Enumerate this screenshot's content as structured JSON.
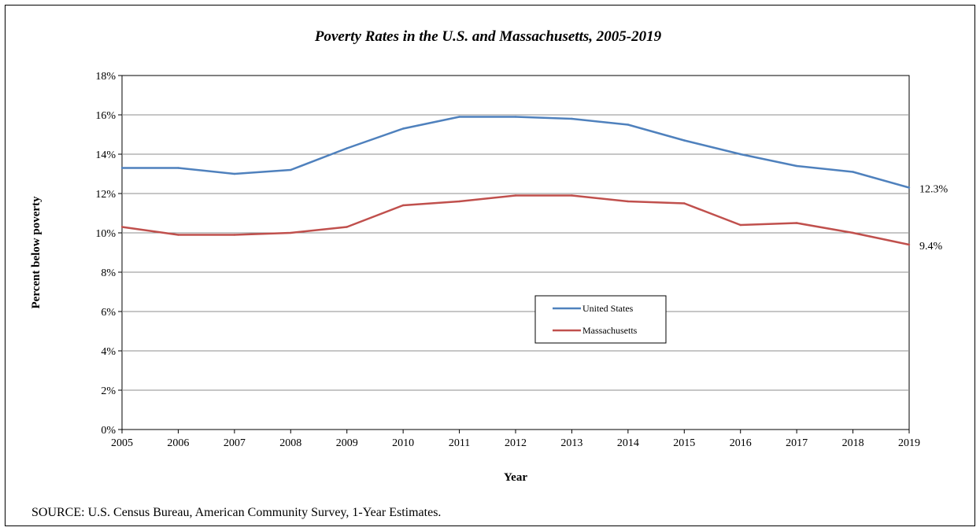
{
  "chart_data": {
    "type": "line",
    "title": "Poverty Rates in the U.S. and Massachusetts, 2005-2019",
    "xlabel": "Year",
    "ylabel": "Percent below poverty",
    "x": [
      2005,
      2006,
      2007,
      2008,
      2009,
      2010,
      2011,
      2012,
      2013,
      2014,
      2015,
      2016,
      2017,
      2018,
      2019
    ],
    "ylim": [
      0,
      18
    ],
    "y_ticks": [
      "0%",
      "2%",
      "4%",
      "6%",
      "8%",
      "10%",
      "12%",
      "14%",
      "16%",
      "18%"
    ],
    "grid": true,
    "legend_position": "center-right",
    "series": [
      {
        "name": "United States",
        "color": "#4f81bd",
        "values": [
          13.3,
          13.3,
          13.0,
          13.2,
          14.3,
          15.3,
          15.9,
          15.9,
          15.8,
          15.5,
          14.7,
          14.0,
          13.4,
          13.1,
          12.3
        ],
        "end_label": "12.3%"
      },
      {
        "name": "Massachusetts",
        "color": "#c0504d",
        "values": [
          10.3,
          9.9,
          9.9,
          10.0,
          10.3,
          11.4,
          11.6,
          11.9,
          11.9,
          11.6,
          11.5,
          10.4,
          10.5,
          10.0,
          9.4
        ],
        "end_label": "9.4%"
      }
    ]
  },
  "source_note": "SOURCE:  U.S. Census Bureau, American Community Survey, 1-Year Estimates."
}
